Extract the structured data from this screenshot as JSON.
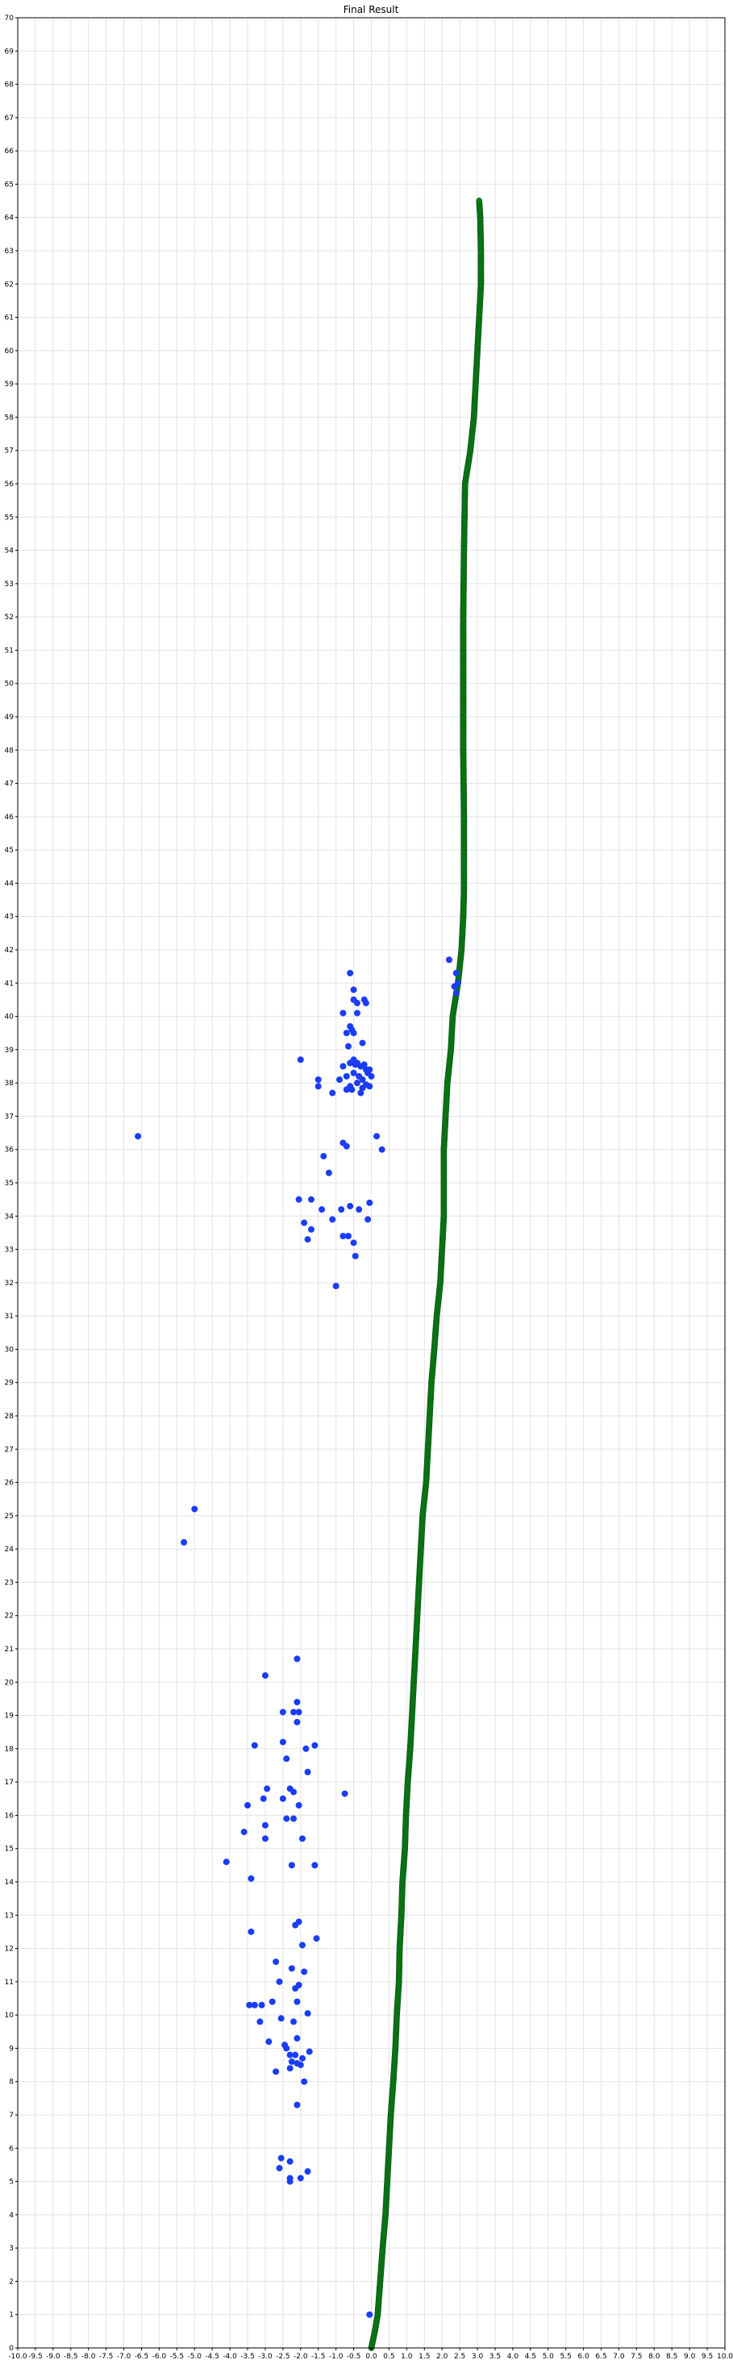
{
  "chart_data": {
    "type": "scatter",
    "title": "Final Result",
    "xlabel": "",
    "ylabel": "",
    "xlim": [
      -10,
      10
    ],
    "ylim": [
      0,
      70
    ],
    "x_tick_step": 0.5,
    "y_tick_step": 1,
    "grid": true,
    "legend": "none",
    "series": [
      {
        "color": "#0a7d16",
        "marker": "circle",
        "path_points": [
          [
            0.0,
            0.0
          ],
          [
            0.1,
            0.5
          ],
          [
            0.18,
            1.0
          ],
          [
            0.25,
            2.0
          ],
          [
            0.32,
            3.0
          ],
          [
            0.4,
            4.0
          ],
          [
            0.45,
            5.0
          ],
          [
            0.5,
            6.0
          ],
          [
            0.55,
            7.0
          ],
          [
            0.62,
            8.0
          ],
          [
            0.68,
            9.0
          ],
          [
            0.72,
            10.0
          ],
          [
            0.78,
            11.0
          ],
          [
            0.8,
            12.0
          ],
          [
            0.85,
            13.0
          ],
          [
            0.88,
            14.0
          ],
          [
            0.95,
            15.0
          ],
          [
            0.98,
            16.0
          ],
          [
            1.03,
            17.0
          ],
          [
            1.1,
            18.0
          ],
          [
            1.15,
            19.0
          ],
          [
            1.2,
            20.0
          ],
          [
            1.25,
            21.0
          ],
          [
            1.3,
            22.0
          ],
          [
            1.35,
            23.0
          ],
          [
            1.4,
            24.0
          ],
          [
            1.45,
            25.0
          ],
          [
            1.55,
            26.0
          ],
          [
            1.6,
            27.0
          ],
          [
            1.65,
            28.0
          ],
          [
            1.7,
            29.0
          ],
          [
            1.78,
            30.0
          ],
          [
            1.85,
            31.0
          ],
          [
            1.95,
            32.0
          ],
          [
            2.0,
            33.0
          ],
          [
            2.05,
            34.0
          ],
          [
            2.05,
            35.0
          ],
          [
            2.05,
            36.0
          ],
          [
            2.1,
            37.0
          ],
          [
            2.15,
            38.0
          ],
          [
            2.25,
            39.0
          ],
          [
            2.3,
            40.0
          ],
          [
            2.45,
            41.0
          ],
          [
            2.55,
            42.0
          ],
          [
            2.6,
            43.0
          ],
          [
            2.62,
            43.8
          ],
          [
            2.62,
            44.5
          ],
          [
            2.62,
            46.0
          ],
          [
            2.6,
            48.0
          ],
          [
            2.6,
            50.0
          ],
          [
            2.6,
            52.0
          ],
          [
            2.62,
            54.0
          ],
          [
            2.65,
            56.0
          ],
          [
            2.8,
            57.0
          ],
          [
            2.9,
            58.0
          ],
          [
            2.95,
            59.0
          ],
          [
            3.0,
            60.0
          ],
          [
            3.05,
            61.0
          ],
          [
            3.1,
            62.0
          ],
          [
            3.1,
            63.0
          ],
          [
            3.08,
            64.0
          ],
          [
            3.05,
            64.5
          ]
        ]
      },
      {
        "color": "#1a3df5",
        "marker": "circle",
        "points": [
          [
            -0.05,
            1.0
          ],
          [
            2.2,
            41.7
          ],
          [
            2.4,
            41.3
          ],
          [
            2.45,
            41.0
          ],
          [
            2.35,
            40.9
          ],
          [
            2.4,
            40.7
          ],
          [
            -0.6,
            41.3
          ],
          [
            -0.5,
            40.8
          ],
          [
            -0.5,
            40.5
          ],
          [
            -0.4,
            40.4
          ],
          [
            -0.2,
            40.5
          ],
          [
            -0.15,
            40.4
          ],
          [
            -0.4,
            40.1
          ],
          [
            -0.8,
            40.1
          ],
          [
            -0.6,
            39.7
          ],
          [
            -0.55,
            39.6
          ],
          [
            -0.7,
            39.5
          ],
          [
            -0.5,
            39.5
          ],
          [
            -0.25,
            39.2
          ],
          [
            -0.65,
            39.1
          ],
          [
            -2.0,
            38.7
          ],
          [
            -0.5,
            38.7
          ],
          [
            -0.8,
            38.5
          ],
          [
            -0.6,
            38.6
          ],
          [
            -0.45,
            38.55
          ],
          [
            -0.4,
            38.6
          ],
          [
            -0.3,
            38.5
          ],
          [
            -0.2,
            38.55
          ],
          [
            -0.1,
            38.3
          ],
          [
            -0.25,
            38.1
          ],
          [
            -0.35,
            38.2
          ],
          [
            -0.5,
            38.3
          ],
          [
            -0.7,
            38.2
          ],
          [
            -0.9,
            38.1
          ],
          [
            -1.5,
            38.1
          ],
          [
            -1.5,
            37.9
          ],
          [
            -0.6,
            37.9
          ],
          [
            -0.4,
            38.0
          ],
          [
            -0.25,
            37.85
          ],
          [
            -0.15,
            37.95
          ],
          [
            -0.55,
            37.8
          ],
          [
            -0.7,
            37.8
          ],
          [
            -1.1,
            37.7
          ],
          [
            -0.3,
            37.7
          ],
          [
            -0.05,
            37.9
          ],
          [
            0.0,
            38.2
          ],
          [
            -0.15,
            38.4
          ],
          [
            -0.05,
            38.4
          ],
          [
            -6.6,
            36.4
          ],
          [
            0.15,
            36.4
          ],
          [
            -0.8,
            36.2
          ],
          [
            -0.7,
            36.1
          ],
          [
            0.3,
            36.0
          ],
          [
            -1.35,
            35.8
          ],
          [
            -1.2,
            35.3
          ],
          [
            -2.05,
            34.5
          ],
          [
            -1.7,
            34.5
          ],
          [
            -0.6,
            34.3
          ],
          [
            -0.35,
            34.2
          ],
          [
            -0.05,
            34.4
          ],
          [
            -1.4,
            34.2
          ],
          [
            -0.85,
            34.2
          ],
          [
            -1.1,
            33.9
          ],
          [
            -0.1,
            33.9
          ],
          [
            -1.9,
            33.8
          ],
          [
            -1.7,
            33.6
          ],
          [
            -0.8,
            33.4
          ],
          [
            -0.65,
            33.4
          ],
          [
            -1.8,
            33.3
          ],
          [
            -0.5,
            33.2
          ],
          [
            -0.45,
            32.8
          ],
          [
            -1.0,
            31.9
          ],
          [
            -5.0,
            25.2
          ],
          [
            -5.3,
            24.2
          ],
          [
            -2.1,
            20.7
          ],
          [
            -3.0,
            20.2
          ],
          [
            -2.1,
            19.4
          ],
          [
            -2.5,
            19.1
          ],
          [
            -2.2,
            19.1
          ],
          [
            -2.05,
            19.1
          ],
          [
            -2.1,
            18.8
          ],
          [
            -2.5,
            18.2
          ],
          [
            -3.3,
            18.1
          ],
          [
            -1.6,
            18.1
          ],
          [
            -1.85,
            18.0
          ],
          [
            -2.4,
            17.7
          ],
          [
            -1.8,
            17.3
          ],
          [
            -2.3,
            16.8
          ],
          [
            -2.95,
            16.8
          ],
          [
            -2.2,
            16.7
          ],
          [
            -0.75,
            16.65
          ],
          [
            -2.5,
            16.5
          ],
          [
            -3.05,
            16.5
          ],
          [
            -3.5,
            16.3
          ],
          [
            -2.05,
            16.3
          ],
          [
            -2.4,
            15.9
          ],
          [
            -2.2,
            15.9
          ],
          [
            -3.0,
            15.7
          ],
          [
            -3.6,
            15.5
          ],
          [
            -3.0,
            15.3
          ],
          [
            -1.95,
            15.3
          ],
          [
            -4.1,
            14.6
          ],
          [
            -2.25,
            14.5
          ],
          [
            -1.6,
            14.5
          ],
          [
            -3.4,
            14.1
          ],
          [
            -2.05,
            12.8
          ],
          [
            -2.15,
            12.7
          ],
          [
            -3.4,
            12.5
          ],
          [
            -1.55,
            12.3
          ],
          [
            -1.95,
            12.1
          ],
          [
            -2.7,
            11.6
          ],
          [
            -2.25,
            11.4
          ],
          [
            -1.9,
            11.3
          ],
          [
            -2.6,
            11.0
          ],
          [
            -2.05,
            10.9
          ],
          [
            -2.15,
            10.8
          ],
          [
            -3.3,
            10.3
          ],
          [
            -3.45,
            10.3
          ],
          [
            -3.1,
            10.3
          ],
          [
            -2.8,
            10.4
          ],
          [
            -2.1,
            10.4
          ],
          [
            -1.8,
            10.05
          ],
          [
            -3.15,
            9.8
          ],
          [
            -2.55,
            9.9
          ],
          [
            -2.2,
            9.8
          ],
          [
            -2.1,
            9.3
          ],
          [
            -2.9,
            9.2
          ],
          [
            -2.45,
            9.1
          ],
          [
            -2.4,
            9.0
          ],
          [
            -1.75,
            8.9
          ],
          [
            -2.3,
            8.8
          ],
          [
            -2.15,
            8.8
          ],
          [
            -1.95,
            8.7
          ],
          [
            -2.25,
            8.6
          ],
          [
            -2.1,
            8.55
          ],
          [
            -2.0,
            8.5
          ],
          [
            -2.3,
            8.4
          ],
          [
            -2.7,
            8.3
          ],
          [
            -1.9,
            8.0
          ],
          [
            -2.1,
            7.3
          ],
          [
            -2.55,
            5.7
          ],
          [
            -2.3,
            5.6
          ],
          [
            -2.6,
            5.4
          ],
          [
            -1.8,
            5.3
          ],
          [
            -2.3,
            5.1
          ],
          [
            -2.3,
            5.0
          ],
          [
            -2.0,
            5.1
          ]
        ]
      }
    ]
  }
}
